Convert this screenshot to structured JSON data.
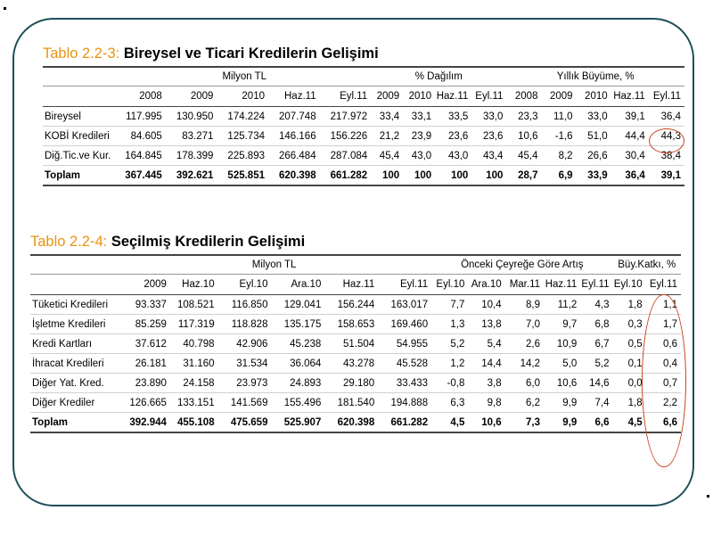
{
  "table1": {
    "title_lead": "Tablo 2.2-3:",
    "title_rest": "Bireysel ve Ticari Kredilerin Gelişimi",
    "groups": [
      "Milyon TL",
      "% Dağılım",
      "Yıllık Büyüme, %"
    ],
    "headers": [
      "2008",
      "2009",
      "2010",
      "Haz.11",
      "Eyl.11",
      "2009",
      "2010",
      "Haz.11",
      "Eyl.11",
      "2008",
      "2009",
      "2010",
      "Haz.11",
      "Eyl.11"
    ],
    "rows": [
      {
        "label": "Bireysel",
        "values": [
          "117.995",
          "130.950",
          "174.224",
          "207.748",
          "217.972",
          "33,4",
          "33,1",
          "33,5",
          "33,0",
          "23,3",
          "11,0",
          "33,0",
          "39,1",
          "36,4"
        ]
      },
      {
        "label": "KOBİ Kredileri",
        "values": [
          "84.605",
          "83.271",
          "125.734",
          "146.166",
          "156.226",
          "21,2",
          "23,9",
          "23,6",
          "23,6",
          "10,6",
          "-1,6",
          "51,0",
          "44,4",
          "44,3"
        ]
      },
      {
        "label": "Diğ.Tic.ve Kur.",
        "values": [
          "164.845",
          "178.399",
          "225.893",
          "266.484",
          "287.084",
          "45,4",
          "43,0",
          "43,0",
          "43,4",
          "45,4",
          "8,2",
          "26,6",
          "30,4",
          "38,4"
        ]
      }
    ],
    "total": {
      "label": "Toplam",
      "values": [
        "367.445",
        "392.621",
        "525.851",
        "620.398",
        "661.282",
        "100",
        "100",
        "100",
        "100",
        "28,7",
        "6,9",
        "33,9",
        "36,4",
        "39,1"
      ]
    }
  },
  "table2": {
    "title_lead": "Tablo 2.2-4:",
    "title_rest": "Seçilmiş Kredilerin Gelişimi",
    "groups": [
      "Milyon TL",
      "Önceki Çeyreğe Göre Artış",
      "Büy.Katkı, %"
    ],
    "headers": [
      "2009",
      "Haz.10",
      "Eyl.10",
      "Ara.10",
      "Haz.11",
      "Eyl.11",
      "Eyl.10",
      "Ara.10",
      "Mar.11",
      "Haz.11",
      "Eyl.11",
      "Eyl.10",
      "Eyl.11"
    ],
    "rows": [
      {
        "label": "Tüketici Kredileri",
        "values": [
          "93.337",
          "108.521",
          "116.850",
          "129.041",
          "156.244",
          "163.017",
          "7,7",
          "10,4",
          "8,9",
          "11,2",
          "4,3",
          "1,8",
          "1,1"
        ]
      },
      {
        "label": "İşletme Kredileri",
        "values": [
          "85.259",
          "117.319",
          "118.828",
          "135.175",
          "158.653",
          "169.460",
          "1,3",
          "13,8",
          "7,0",
          "9,7",
          "6,8",
          "0,3",
          "1,7"
        ]
      },
      {
        "label": "Kredi Kartları",
        "values": [
          "37.612",
          "40.798",
          "42.906",
          "45.238",
          "51.504",
          "54.955",
          "5,2",
          "5,4",
          "2,6",
          "10,9",
          "6,7",
          "0,5",
          "0,6"
        ]
      },
      {
        "label": "İhracat Kredileri",
        "values": [
          "26.181",
          "31.160",
          "31.534",
          "36.064",
          "43.278",
          "45.528",
          "1,2",
          "14,4",
          "14,2",
          "5,0",
          "5,2",
          "0,1",
          "0,4"
        ]
      },
      {
        "label": "Diğer Yat. Kred.",
        "values": [
          "23.890",
          "24.158",
          "23.973",
          "24.893",
          "29.180",
          "33.433",
          "-0,8",
          "3,8",
          "6,0",
          "10,6",
          "14,6",
          "0,0",
          "0,7"
        ]
      },
      {
        "label": "Diğer Krediler",
        "values": [
          "126.665",
          "133.151",
          "141.569",
          "155.496",
          "181.540",
          "194.888",
          "6,3",
          "9,8",
          "6,2",
          "9,9",
          "7,4",
          "1,8",
          "2,2"
        ]
      }
    ],
    "total": {
      "label": "Toplam",
      "values": [
        "392.944",
        "455.108",
        "475.659",
        "525.907",
        "620.398",
        "661.282",
        "4,5",
        "10,6",
        "7,3",
        "9,9",
        "6,6",
        "4,5",
        "6,6"
      ]
    }
  },
  "colors": {
    "title_lead": "#e8930f",
    "frame": "#1f4f57",
    "highlight": "#c8451c"
  }
}
